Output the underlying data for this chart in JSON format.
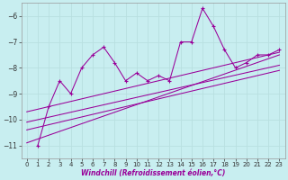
{
  "xlabel": "Windchill (Refroidissement éolien,°C)",
  "bg_color": "#c8eef0",
  "line_color": "#990099",
  "grid_color": "#b8dfe0",
  "xlim": [
    -0.5,
    23.5
  ],
  "ylim": [
    -11.5,
    -5.5
  ],
  "yticks": [
    -11,
    -10,
    -9,
    -8,
    -7,
    -6
  ],
  "xticks": [
    0,
    1,
    2,
    3,
    4,
    5,
    6,
    7,
    8,
    9,
    10,
    11,
    12,
    13,
    14,
    15,
    16,
    17,
    18,
    19,
    20,
    21,
    22,
    23
  ],
  "scatter_x": [
    1,
    2,
    3,
    4,
    5,
    6,
    7,
    8,
    9,
    10,
    11,
    12,
    13,
    14,
    15,
    16,
    17,
    18,
    19,
    20,
    21,
    22,
    23
  ],
  "scatter_y": [
    -11.0,
    -9.5,
    -8.5,
    -9.0,
    -8.0,
    -7.5,
    -7.2,
    -7.8,
    -8.5,
    -8.2,
    -8.5,
    -8.3,
    -8.5,
    -7.0,
    -7.0,
    -5.7,
    -6.4,
    -7.3,
    -8.0,
    -7.8,
    -7.5,
    -7.5,
    -7.3
  ],
  "reg_lines": [
    {
      "x0": 0,
      "y0": -10.9,
      "x1": 23,
      "y1": -7.5
    },
    {
      "x0": 0,
      "y0": -10.4,
      "x1": 23,
      "y1": -8.1
    },
    {
      "x0": 0,
      "y0": -10.1,
      "x1": 23,
      "y1": -7.9
    },
    {
      "x0": 0,
      "y0": -9.7,
      "x1": 23,
      "y1": -7.4
    }
  ],
  "tick_fontsize": 5.0,
  "xlabel_fontsize": 5.5,
  "xlabel_color": "#990099"
}
